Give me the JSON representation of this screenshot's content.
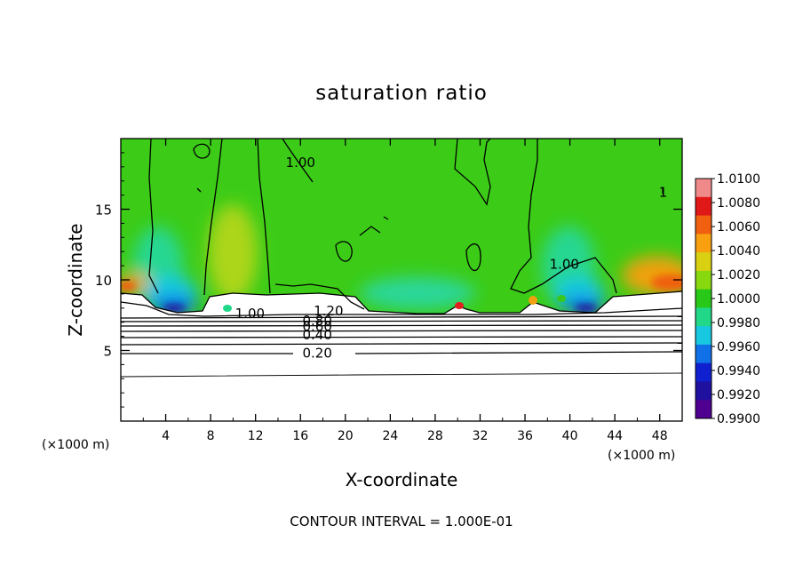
{
  "chart_data": {
    "type": "heatmap",
    "title": "saturation ratio",
    "xlabel": "X-coordinate",
    "ylabel": "Z-coordinate",
    "x_unit_left": "(×1000 m)",
    "x_unit_right": "(×1000 m)",
    "xlim": [
      0,
      50
    ],
    "ylim": [
      0,
      20
    ],
    "x_ticks": [
      4,
      8,
      12,
      16,
      20,
      24,
      28,
      32,
      36,
      40,
      44,
      48
    ],
    "y_ticks": [
      5,
      10,
      15
    ],
    "colorbar": {
      "labels": [
        "1.0100",
        "1.0080",
        "1.0060",
        "1.0040",
        "1.0020",
        "1.0000",
        "0.9980",
        "0.9960",
        "0.9940",
        "0.9920",
        "0.9900"
      ],
      "min": 0.99,
      "max": 1.01,
      "colors": [
        "#f08a8a",
        "#e01818",
        "#f06010",
        "#f8a010",
        "#d8d010",
        "#88d810",
        "#28c818",
        "#20d888",
        "#18c8e0",
        "#1070e8",
        "#1020d0",
        "#2010a0",
        "#500090"
      ]
    },
    "contour_labels": [
      {
        "text": "1.20",
        "x": 18.5,
        "z": 7.8
      },
      {
        "text": "0.80",
        "x": 17.5,
        "z": 7.1
      },
      {
        "text": "0.60",
        "x": 17.5,
        "z": 6.7
      },
      {
        "text": "0.40",
        "x": 17.5,
        "z": 6.1
      },
      {
        "text": "0.20",
        "x": 17.5,
        "z": 4.8
      },
      {
        "text": "1.00",
        "x": 11.5,
        "z": 7.6
      },
      {
        "text": "1.00",
        "x": 39.5,
        "z": 11.1
      },
      {
        "text": "1.00",
        "x": 16,
        "z": 18.3
      },
      {
        "text": "1",
        "x": 48.3,
        "z": 16.2
      }
    ],
    "subsaturated_below_z": 8,
    "footer": "CONTOUR INTERVAL = 1.000E-01"
  }
}
